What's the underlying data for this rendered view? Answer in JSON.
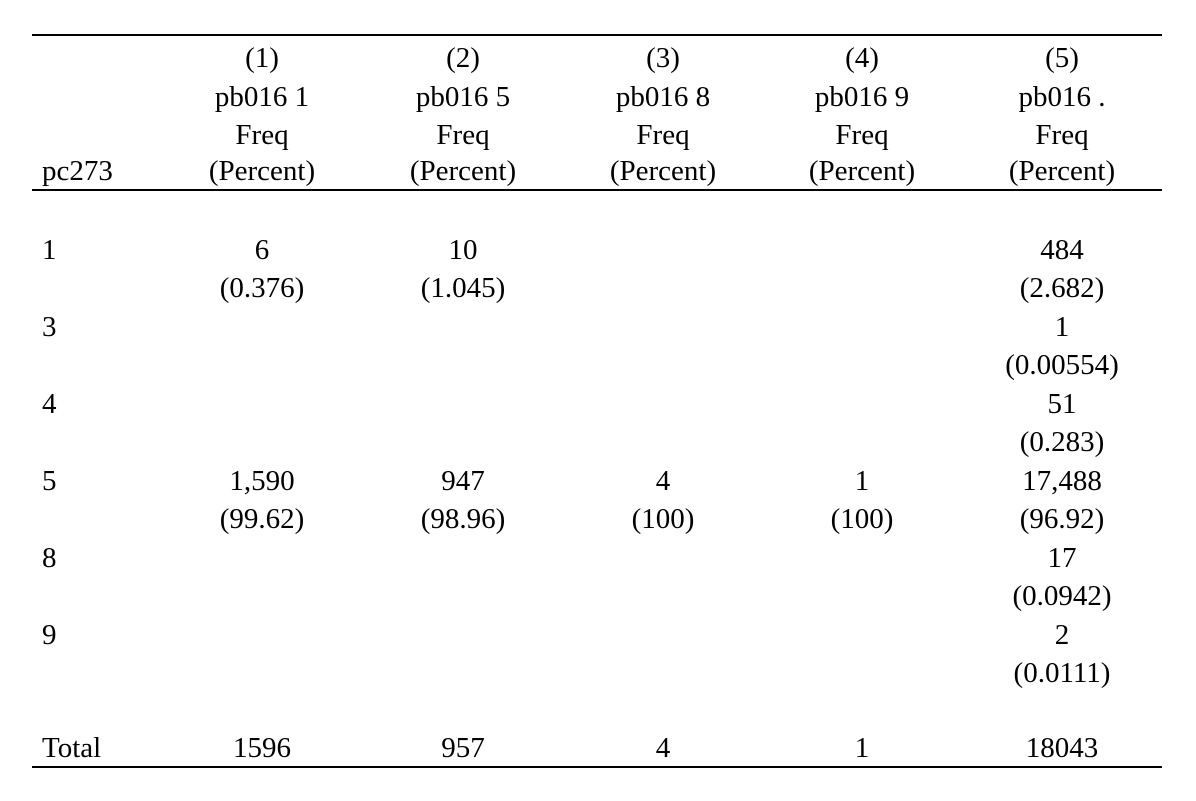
{
  "table": {
    "columns": [
      {
        "num": "(1)",
        "var": "pb016 1",
        "stat": "Freq",
        "pct": "(Percent)"
      },
      {
        "num": "(2)",
        "var": "pb016 5",
        "stat": "Freq",
        "pct": "(Percent)"
      },
      {
        "num": "(3)",
        "var": "pb016 8",
        "stat": "Freq",
        "pct": "(Percent)"
      },
      {
        "num": "(4)",
        "var": "pb016 9",
        "stat": "Freq",
        "pct": "(Percent)"
      },
      {
        "num": "(5)",
        "var": "pb016 .",
        "stat": "Freq",
        "pct": "(Percent)"
      }
    ],
    "row_header": "pc273",
    "rows": [
      {
        "label": "1",
        "cells": [
          {
            "freq": "6",
            "pct": "(0.376)"
          },
          {
            "freq": "10",
            "pct": "(1.045)"
          },
          {
            "freq": "",
            "pct": ""
          },
          {
            "freq": "",
            "pct": ""
          },
          {
            "freq": "484",
            "pct": "(2.682)"
          }
        ]
      },
      {
        "label": "3",
        "cells": [
          {
            "freq": "",
            "pct": ""
          },
          {
            "freq": "",
            "pct": ""
          },
          {
            "freq": "",
            "pct": ""
          },
          {
            "freq": "",
            "pct": ""
          },
          {
            "freq": "1",
            "pct": "(0.00554)"
          }
        ]
      },
      {
        "label": "4",
        "cells": [
          {
            "freq": "",
            "pct": ""
          },
          {
            "freq": "",
            "pct": ""
          },
          {
            "freq": "",
            "pct": ""
          },
          {
            "freq": "",
            "pct": ""
          },
          {
            "freq": "51",
            "pct": "(0.283)"
          }
        ]
      },
      {
        "label": "5",
        "cells": [
          {
            "freq": "1,590",
            "pct": "(99.62)"
          },
          {
            "freq": "947",
            "pct": "(98.96)"
          },
          {
            "freq": "4",
            "pct": "(100)"
          },
          {
            "freq": "1",
            "pct": "(100)"
          },
          {
            "freq": "17,488",
            "pct": "(96.92)"
          }
        ]
      },
      {
        "label": "8",
        "cells": [
          {
            "freq": "",
            "pct": ""
          },
          {
            "freq": "",
            "pct": ""
          },
          {
            "freq": "",
            "pct": ""
          },
          {
            "freq": "",
            "pct": ""
          },
          {
            "freq": "17",
            "pct": "(0.0942)"
          }
        ]
      },
      {
        "label": "9",
        "cells": [
          {
            "freq": "",
            "pct": ""
          },
          {
            "freq": "",
            "pct": ""
          },
          {
            "freq": "",
            "pct": ""
          },
          {
            "freq": "",
            "pct": ""
          },
          {
            "freq": "2",
            "pct": "(0.0111)"
          }
        ]
      }
    ],
    "total": {
      "label": "Total",
      "values": [
        "1596",
        "957",
        "4",
        "1",
        "18043"
      ]
    }
  }
}
